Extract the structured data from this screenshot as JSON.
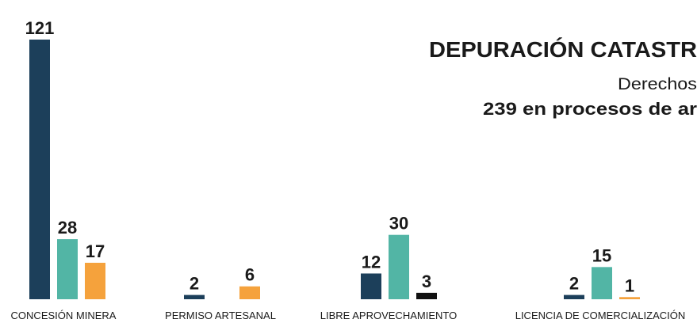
{
  "chart_data": {
    "type": "bar",
    "title": "DEPURACIÓN CATASTR",
    "subtitle": "Derechos",
    "annotation": "239 en procesos de ar",
    "categories": [
      "CONCESIÓN MINERA",
      "PERMISO ARTESANAL",
      "LIBRE APROVECHAMIENTO",
      "LICENCIA DE COMERCIALIZACIÓN"
    ],
    "series": [
      {
        "color": "#1c3f5a",
        "values": [
          121,
          2,
          12,
          2
        ]
      },
      {
        "color": "#52b5a5",
        "values": [
          28,
          null,
          30,
          15
        ]
      },
      {
        "color": "#f5a23c",
        "colors": [
          "#f5a23c",
          "#f5a23c",
          "#111111",
          "#f5a23c"
        ],
        "values": [
          17,
          6,
          3,
          1
        ]
      }
    ]
  }
}
